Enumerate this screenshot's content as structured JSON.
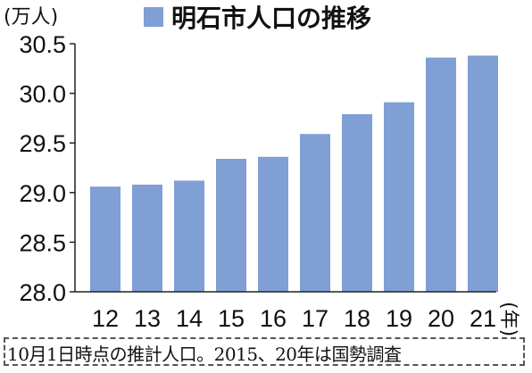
{
  "chart_data": {
    "type": "bar",
    "title": "明石市人口の推移",
    "y_unit": "(万人)",
    "x_unit": "(年)",
    "categories": [
      "12",
      "13",
      "14",
      "15",
      "16",
      "17",
      "18",
      "19",
      "20",
      "21"
    ],
    "values": [
      29.06,
      29.08,
      29.12,
      29.34,
      29.36,
      29.59,
      29.79,
      29.91,
      30.36,
      30.38
    ],
    "ylim": [
      28.0,
      30.5
    ],
    "yticks": [
      "28.0",
      "28.5",
      "29.0",
      "29.5",
      "30.0",
      "30.5"
    ],
    "bar_color": "#7f9fd5",
    "grid": false,
    "legend": "top"
  },
  "note": "10月1日時点の推計人口。2015、20年は国勢調査"
}
